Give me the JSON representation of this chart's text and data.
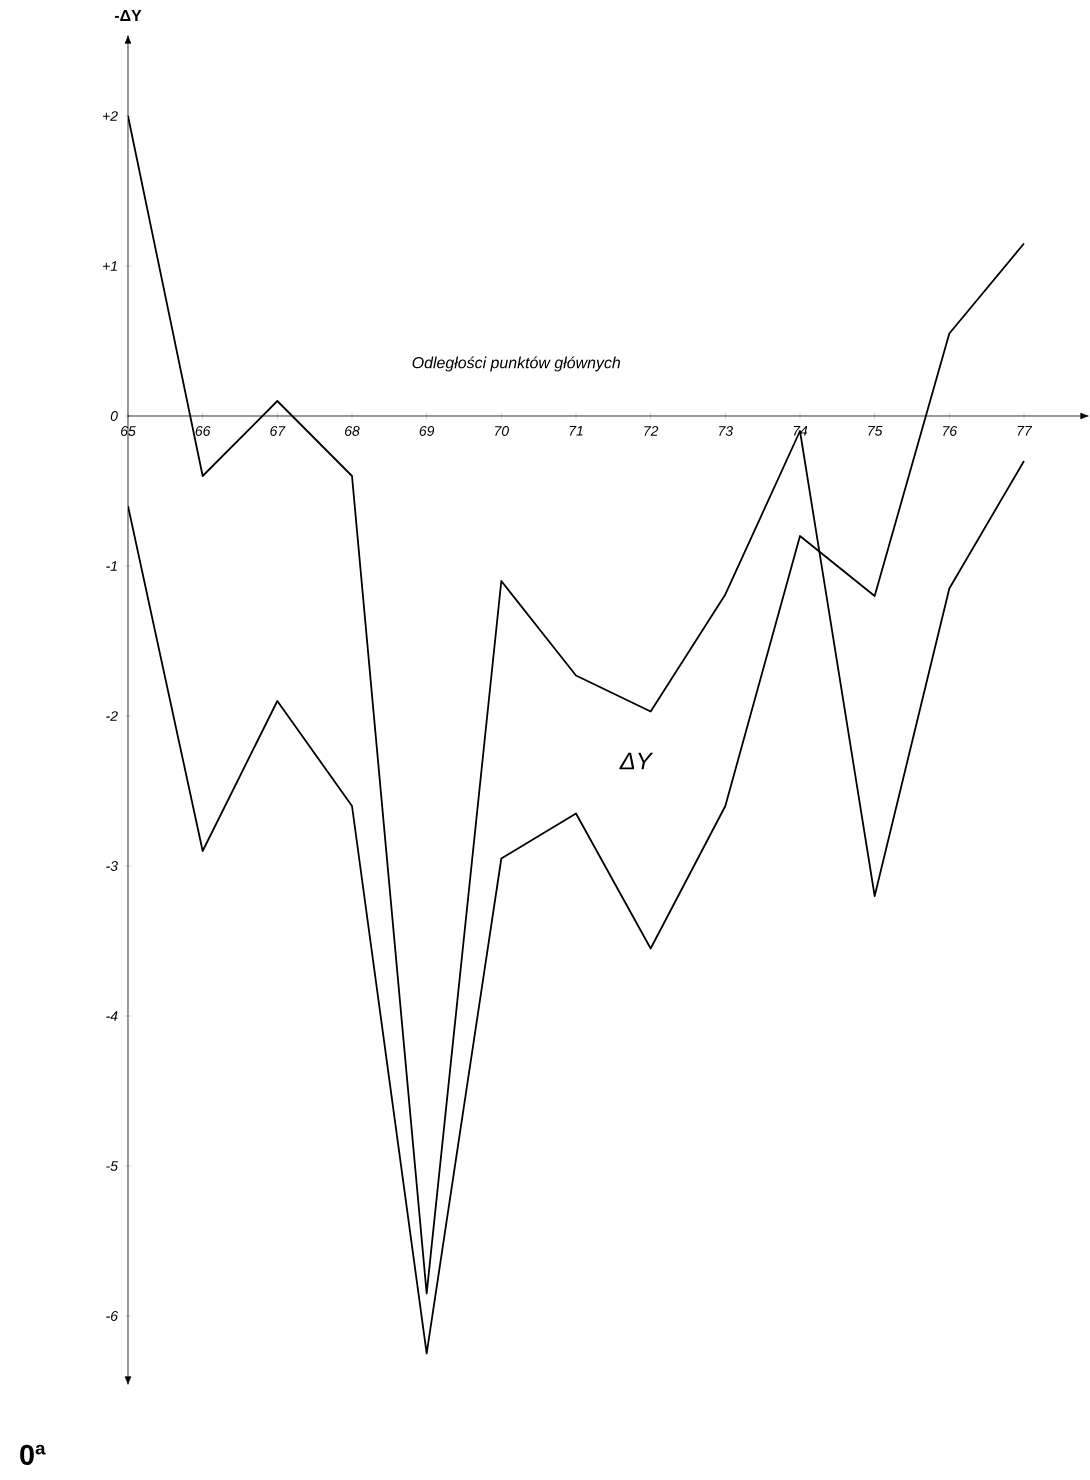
{
  "chart_data": {
    "type": "line",
    "ylabel": "-ΔY",
    "xlabel": "Odległości punktów głównych",
    "annotations": [
      "ΔY",
      "0ª"
    ],
    "x": [
      65,
      66,
      67,
      68,
      69,
      70,
      71,
      72,
      73,
      74,
      75,
      76,
      77
    ],
    "series": [
      {
        "color": "#000000",
        "values": [
          2.0,
          -0.4,
          0.1,
          -0.4,
          -5.85,
          -1.1,
          -1.73,
          -1.97,
          -1.19,
          -0.1,
          -3.2,
          -1.15,
          -0.3
        ]
      },
      {
        "color": "#000000",
        "values": [
          -0.6,
          -2.9,
          -1.9,
          -2.6,
          -6.25,
          -2.95,
          -2.65,
          -3.55,
          -2.6,
          -0.8,
          -1.2,
          0.55,
          1.15
        ]
      }
    ],
    "xlim": [
      65,
      77.75
    ],
    "ylim": [
      -6.4,
      2.48
    ],
    "xticks": [
      65,
      66,
      67,
      68,
      69,
      70,
      71,
      72,
      73,
      74,
      75,
      76,
      77
    ],
    "yticks": [
      {
        "value": 2,
        "label": "+2"
      },
      {
        "value": 1,
        "label": "+1"
      },
      0,
      -1,
      -2,
      -3,
      -4,
      -5,
      -6
    ],
    "grid": false,
    "marker": "none",
    "line_style": "solid"
  }
}
